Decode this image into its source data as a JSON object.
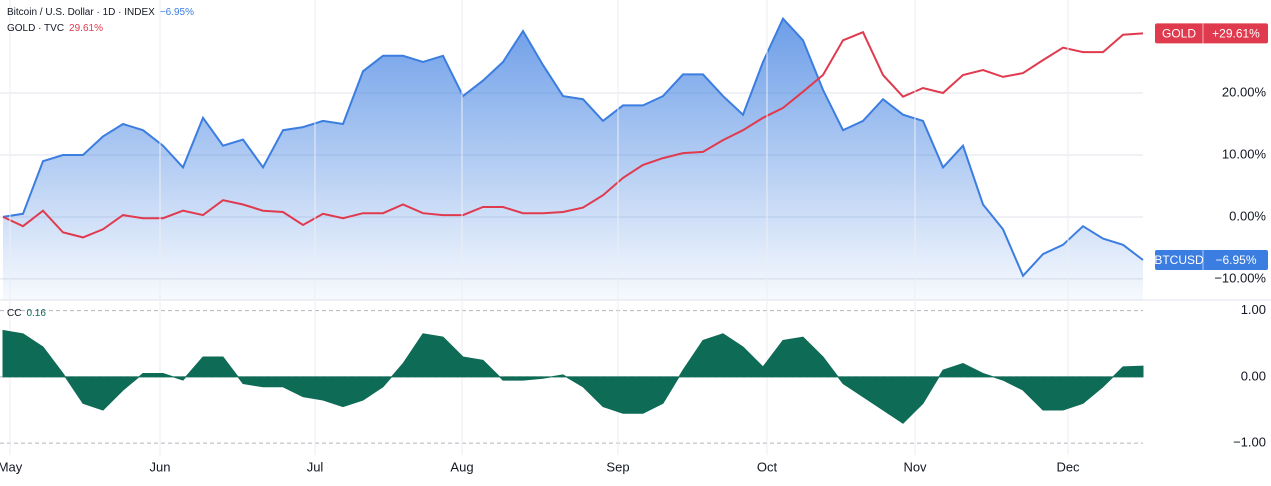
{
  "chart_data": [
    {
      "type": "line",
      "xlim": [
        0,
        57
      ],
      "ylim": [
        -13.4,
        35
      ],
      "yticks": [
        {
          "value": 20,
          "label": "20.00%"
        },
        {
          "value": 10,
          "label": "10.00%"
        },
        {
          "value": 0,
          "label": "0.00%"
        },
        {
          "value": -10,
          "label": "−10.00%"
        }
      ],
      "grid": true,
      "series": [
        {
          "name": "Bitcoin / U.S. Dollar · 1D · INDEX",
          "short_name": "BTCUSD",
          "color": "#3b7de0",
          "area": true,
          "legend_value_label": "−6.95%",
          "badge_value_label": "−6.95%",
          "values": [
            0,
            0.5,
            9,
            10,
            10,
            13,
            15,
            14,
            11.5,
            8,
            16,
            11.5,
            12.5,
            8,
            14,
            14.5,
            15.5,
            15,
            23.5,
            26,
            26,
            25,
            26,
            19.5,
            22,
            25,
            30,
            24.5,
            19.5,
            19,
            15.5,
            18,
            18,
            19.5,
            23,
            23,
            19.5,
            16.5,
            25,
            32,
            28.5,
            20.5,
            14,
            15.5,
            19,
            16.5,
            15.5,
            8,
            11.5,
            2,
            -2,
            -9.5,
            -6,
            -4.5,
            -1.5,
            -3.5,
            -4.5,
            -6.95
          ]
        },
        {
          "name": "GOLD · TVC",
          "short_name": "GOLD",
          "color": "#e03a4e",
          "area": false,
          "legend_value_label": "29.61%",
          "badge_value_label": "+29.61%",
          "values": [
            0,
            -1.5,
            1,
            -2.5,
            -3.3,
            -2,
            0.3,
            -0.2,
            -0.2,
            1,
            0.3,
            2.7,
            2,
            1,
            0.8,
            -1.3,
            0.5,
            -0.2,
            0.6,
            0.6,
            2,
            0.6,
            0.3,
            0.3,
            1.6,
            1.6,
            0.6,
            0.6,
            0.8,
            1.5,
            3.5,
            6.3,
            8.4,
            9.5,
            10.3,
            10.5,
            12.4,
            14,
            16,
            17.6,
            20.2,
            22.9,
            28.5,
            29.8,
            22.9,
            19.4,
            20.8,
            20,
            22.9,
            23.7,
            22.6,
            23.2,
            25.3,
            27.3,
            26.6,
            26.6,
            29.4,
            29.61
          ]
        }
      ]
    },
    {
      "type": "area",
      "xlim": [
        0,
        57
      ],
      "ylim": [
        -1.18,
        1.16
      ],
      "yticks": [
        {
          "value": 1,
          "label": "1.00"
        },
        {
          "value": 0,
          "label": "0.00"
        },
        {
          "value": -1,
          "label": "−1.00"
        }
      ],
      "xticks": [
        {
          "value": 0.35,
          "label": "May"
        },
        {
          "value": 7.85,
          "label": "Jun"
        },
        {
          "value": 15.6,
          "label": "Jul"
        },
        {
          "value": 22.95,
          "label": "Aug"
        },
        {
          "value": 30.75,
          "label": "Sep"
        },
        {
          "value": 38.2,
          "label": "Oct"
        },
        {
          "value": 45.6,
          "label": "Nov"
        },
        {
          "value": 53.25,
          "label": "Dec"
        }
      ],
      "series": [
        {
          "name": "CC",
          "color": "#0e6b56",
          "legend_value_label": "0.16",
          "values": [
            0.7,
            0.65,
            0.45,
            0.05,
            -0.4,
            -0.5,
            -0.2,
            0.05,
            0.05,
            -0.05,
            0.3,
            0.3,
            -0.1,
            -0.15,
            -0.15,
            -0.3,
            -0.35,
            -0.45,
            -0.35,
            -0.15,
            0.2,
            0.65,
            0.6,
            0.3,
            0.25,
            -0.05,
            -0.05,
            -0.02,
            0.03,
            -0.15,
            -0.45,
            -0.55,
            -0.55,
            -0.4,
            0.1,
            0.55,
            0.65,
            0.45,
            0.15,
            0.55,
            0.6,
            0.3,
            -0.1,
            -0.3,
            -0.5,
            -0.7,
            -0.4,
            0.1,
            0.2,
            0.05,
            -0.05,
            -0.2,
            -0.5,
            -0.5,
            -0.4,
            -0.15,
            0.15,
            0.16
          ]
        }
      ]
    }
  ]
}
